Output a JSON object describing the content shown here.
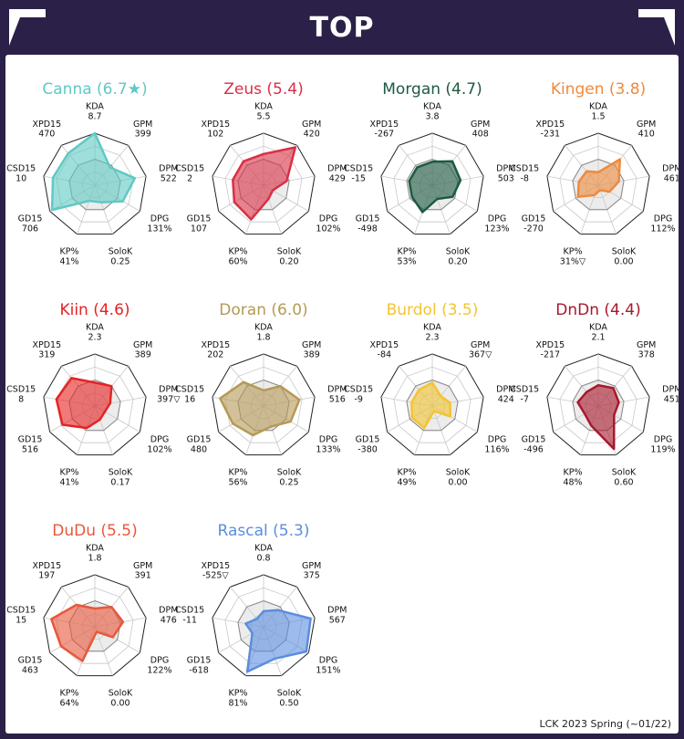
{
  "header": {
    "title": "TOP"
  },
  "footer": {
    "source": "LCK 2023 Spring (~01/22)"
  },
  "chart_data": {
    "type": "radar",
    "axes": [
      "KDA",
      "GPM",
      "DPM",
      "DPG",
      "SoloK",
      "KP%",
      "GD15",
      "CSD15",
      "XPD15"
    ],
    "players": [
      {
        "title": "Canna (6.7★)",
        "color": "#5fc9c3",
        "labels": [
          "8.7",
          "399",
          "522",
          "131%",
          "0.25",
          "41%",
          "706",
          "10",
          "470"
        ],
        "r": [
          1.0,
          0.45,
          0.78,
          0.62,
          0.35,
          0.32,
          0.95,
          0.82,
          0.8
        ]
      },
      {
        "title": "Zeus (5.4)",
        "color": "#d92f45",
        "labels": [
          "5.5",
          "420",
          "429",
          "102%",
          "0.20",
          "60%",
          "107",
          "2",
          "102"
        ],
        "r": [
          0.6,
          0.95,
          0.45,
          0.2,
          0.28,
          0.7,
          0.65,
          0.6,
          0.6
        ]
      },
      {
        "title": "Morgan (4.7)",
        "color": "#1d5a41",
        "labels": [
          "3.8",
          "408",
          "503",
          "123%",
          "0.20",
          "53%",
          "-498",
          "-15",
          "-267"
        ],
        "r": [
          0.45,
          0.6,
          0.55,
          0.45,
          0.28,
          0.55,
          0.45,
          0.45,
          0.45
        ]
      },
      {
        "title": "Kingen (3.8)",
        "color": "#ef8a3c",
        "labels": [
          "1.5",
          "410",
          "461",
          "112%",
          "0.00",
          "31%▽",
          "-270",
          "-8",
          "-231"
        ],
        "r": [
          0.25,
          0.65,
          0.4,
          0.25,
          0.1,
          0.2,
          0.45,
          0.38,
          0.35
        ]
      },
      {
        "title": "Kiin (4.6)",
        "color": "#e62222",
        "labels": [
          "2.3",
          "389",
          "397▽",
          "102%",
          "0.17",
          "41%",
          "516",
          "8",
          "319"
        ],
        "r": [
          0.45,
          0.5,
          0.3,
          0.22,
          0.28,
          0.45,
          0.72,
          0.75,
          0.7
        ]
      },
      {
        "title": "Doran (6.0)",
        "color": "#b59a55",
        "labels": [
          "1.8",
          "389",
          "516",
          "133%",
          "0.25",
          "56%",
          "480",
          "16",
          "202"
        ],
        "r": [
          0.3,
          0.5,
          0.7,
          0.6,
          0.42,
          0.6,
          0.68,
          0.85,
          0.6
        ]
      },
      {
        "title": "Burdol (3.5)",
        "color": "#f4c430",
        "labels": [
          "2.3",
          "367▽",
          "424",
          "116%",
          "0.00",
          "49%",
          "-380",
          "-9",
          "-84"
        ],
        "r": [
          0.45,
          0.25,
          0.35,
          0.4,
          0.1,
          0.45,
          0.45,
          0.4,
          0.4
        ]
      },
      {
        "title": "DnDn (4.4)",
        "color": "#a8182c",
        "labels": [
          "2.1",
          "378",
          "451",
          "119%",
          "0.60",
          "48%",
          "-496",
          "-7",
          "-217"
        ],
        "r": [
          0.4,
          0.45,
          0.4,
          0.35,
          0.88,
          0.4,
          0.3,
          0.4,
          0.35
        ]
      },
      {
        "title": "DuDu (5.5)",
        "color": "#e8573a",
        "labels": [
          "1.8",
          "391",
          "476",
          "122%",
          "0.00",
          "64%",
          "463",
          "15",
          "197"
        ],
        "r": [
          0.35,
          0.5,
          0.55,
          0.4,
          0.1,
          0.7,
          0.75,
          0.85,
          0.55
        ]
      },
      {
        "title": "Rascal (5.3)",
        "color": "#5b8de0",
        "labels": [
          "0.8",
          "375",
          "567",
          "151%",
          "0.50",
          "81%",
          "-618",
          "-11",
          "-525▽"
        ],
        "r": [
          0.3,
          0.42,
          0.92,
          0.95,
          0.65,
          0.92,
          0.25,
          0.35,
          0.2
        ]
      }
    ]
  }
}
